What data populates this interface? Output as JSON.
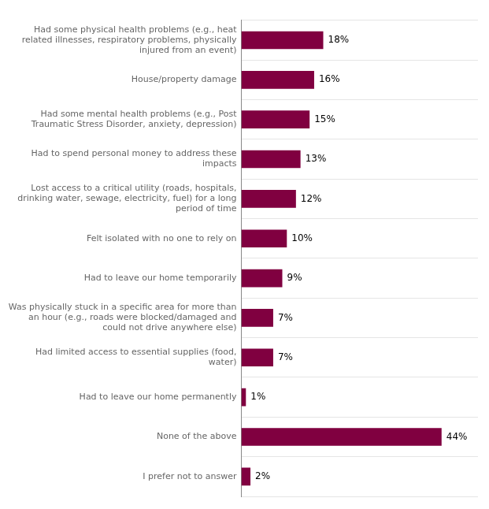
{
  "chart_data": {
    "type": "bar",
    "orientation": "horizontal",
    "categories": [
      "I prefer not to answer",
      "None of the above",
      "Had to leave our home permanently",
      "Had limited access to essential supplies (food,\nwater)",
      "Was physically stuck in a specific area for more than\nan hour (e.g., roads were blocked/damaged and\ncould not drive anywhere else)",
      "Had to leave our home temporarily",
      "Felt isolated with no one to rely on",
      "Lost access to a critical utility (roads, hospitals,\ndrinking water, sewage, electricity, fuel) for a long\nperiod of time",
      "Had to spend personal money to address these\nimpacts",
      "Had some mental health problems (e.g., Post\nTraumatic Stress Disorder, anxiety, depression)",
      "House/property damage",
      "Had some physical health problems (e.g., heat\nrelated illnesses, respiratory problems, physically\ninjured from an event)"
    ],
    "values": [
      2,
      44,
      1,
      7,
      7,
      9,
      10,
      12,
      13,
      15,
      16,
      18
    ],
    "value_labels": [
      "2%",
      "44%",
      "1%",
      "7%",
      "7%",
      "9%",
      "10%",
      "12%",
      "13%",
      "15%",
      "16%",
      "18%"
    ],
    "data_labels": true,
    "color": "#800040",
    "xlim": [
      0,
      52
    ],
    "grid": true,
    "legend": false,
    "tick_labels": "y"
  }
}
